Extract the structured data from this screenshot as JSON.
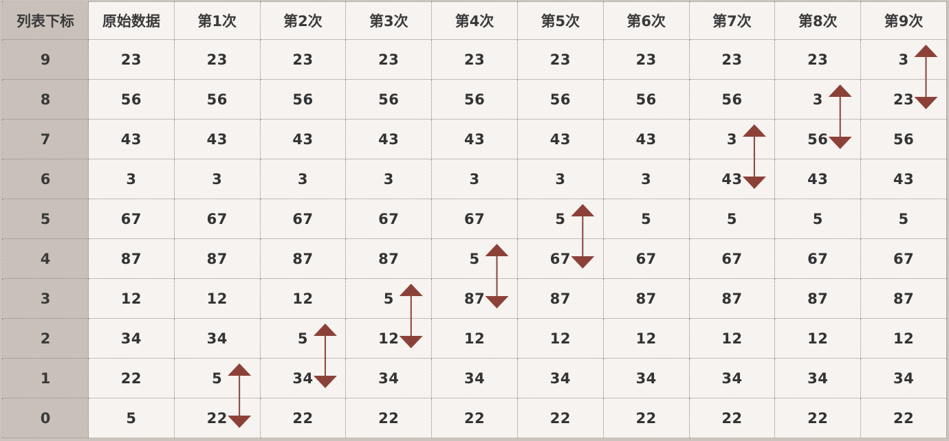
{
  "header": {
    "index_label": "列表下标",
    "columns": [
      "原始数据",
      "第1次",
      "第2次",
      "第3次",
      "第4次",
      "第5次",
      "第6次",
      "第7次",
      "第8次",
      "第9次"
    ]
  },
  "rows": [
    {
      "index": "9",
      "values": [
        "23",
        "23",
        "23",
        "23",
        "23",
        "23",
        "23",
        "23",
        "23",
        "3"
      ]
    },
    {
      "index": "8",
      "values": [
        "56",
        "56",
        "56",
        "56",
        "56",
        "56",
        "56",
        "56",
        "3",
        "23"
      ]
    },
    {
      "index": "7",
      "values": [
        "43",
        "43",
        "43",
        "43",
        "43",
        "43",
        "43",
        "3",
        "56",
        "56"
      ]
    },
    {
      "index": "6",
      "values": [
        "3",
        "3",
        "3",
        "3",
        "3",
        "3",
        "3",
        "43",
        "43",
        "43"
      ]
    },
    {
      "index": "5",
      "values": [
        "67",
        "67",
        "67",
        "67",
        "67",
        "5",
        "5",
        "5",
        "5",
        "5"
      ]
    },
    {
      "index": "4",
      "values": [
        "87",
        "87",
        "87",
        "87",
        "5",
        "67",
        "67",
        "67",
        "67",
        "67"
      ]
    },
    {
      "index": "3",
      "values": [
        "12",
        "12",
        "12",
        "5",
        "87",
        "87",
        "87",
        "87",
        "87",
        "87"
      ]
    },
    {
      "index": "2",
      "values": [
        "34",
        "34",
        "5",
        "12",
        "12",
        "12",
        "12",
        "12",
        "12",
        "12"
      ]
    },
    {
      "index": "1",
      "values": [
        "22",
        "5",
        "34",
        "34",
        "34",
        "34",
        "34",
        "34",
        "34",
        "34"
      ]
    },
    {
      "index": "0",
      "values": [
        "5",
        "22",
        "22",
        "22",
        "22",
        "22",
        "22",
        "22",
        "22",
        "22"
      ]
    }
  ],
  "swaps": [
    {
      "pass": "第1次",
      "lower_index": "0",
      "upper_index": "1"
    },
    {
      "pass": "第2次",
      "lower_index": "1",
      "upper_index": "2"
    },
    {
      "pass": "第3次",
      "lower_index": "2",
      "upper_index": "3"
    },
    {
      "pass": "第4次",
      "lower_index": "3",
      "upper_index": "4"
    },
    {
      "pass": "第5次",
      "lower_index": "4",
      "upper_index": "5"
    },
    {
      "pass": "第7次",
      "lower_index": "6",
      "upper_index": "7"
    },
    {
      "pass": "第8次",
      "lower_index": "7",
      "upper_index": "8"
    },
    {
      "pass": "第9次",
      "lower_index": "8",
      "upper_index": "9"
    }
  ],
  "colors": {
    "arrow": "#8c4138",
    "index_column_bg": "#c9c1b9",
    "cell_bg": "#f6f3f0"
  }
}
